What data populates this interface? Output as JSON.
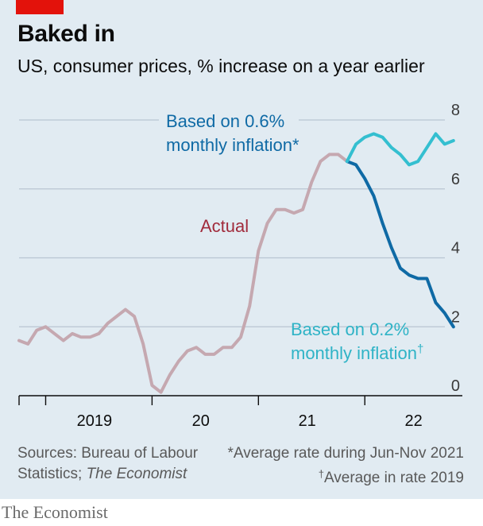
{
  "header": {
    "title": "Baked in",
    "subtitle": "US, consumer prices, % increase on a year earlier"
  },
  "colors": {
    "actual": "#c5a8b0",
    "projection_high": "#0f6aa5",
    "projection_low": "#34bfd0",
    "actual_label": "#a12b3c",
    "grid": "#b8c6d2",
    "panel": "#e1ebf2"
  },
  "chart_data": {
    "type": "line",
    "ylim": [
      0,
      8
    ],
    "yticks": [
      "8",
      "6",
      "4",
      "2",
      "0"
    ],
    "xticks": [
      "2019",
      "20",
      "21",
      "22"
    ],
    "x_range": [
      "2018-10",
      "2022-12"
    ],
    "series": [
      {
        "name": "Actual",
        "x": [
          "2018-10",
          "2018-11",
          "2018-12",
          "2019-01",
          "2019-02",
          "2019-03",
          "2019-04",
          "2019-05",
          "2019-06",
          "2019-07",
          "2019-08",
          "2019-09",
          "2019-10",
          "2019-11",
          "2019-12",
          "2020-01",
          "2020-02",
          "2020-03",
          "2020-04",
          "2020-05",
          "2020-06",
          "2020-07",
          "2020-08",
          "2020-09",
          "2020-10",
          "2020-11",
          "2020-12",
          "2021-01",
          "2021-02",
          "2021-03",
          "2021-04",
          "2021-05",
          "2021-06",
          "2021-07",
          "2021-08",
          "2021-09",
          "2021-10",
          "2021-11"
        ],
        "values": [
          1.6,
          1.5,
          1.9,
          2.0,
          1.8,
          1.6,
          1.8,
          1.7,
          1.7,
          1.8,
          2.1,
          2.3,
          2.5,
          2.3,
          1.5,
          0.3,
          0.1,
          0.6,
          1.0,
          1.3,
          1.4,
          1.2,
          1.2,
          1.4,
          1.4,
          1.7,
          2.6,
          4.2,
          5.0,
          5.4,
          5.4,
          5.3,
          5.4,
          6.2,
          6.8,
          7.0,
          7.0,
          6.8
        ]
      },
      {
        "name": "Based on 0.6% monthly inflation*",
        "x": [
          "2021-11",
          "2021-12",
          "2022-01",
          "2022-02",
          "2022-03",
          "2022-04",
          "2022-05",
          "2022-06",
          "2022-07",
          "2022-08",
          "2022-09",
          "2022-10",
          "2022-11"
        ],
        "values": [
          6.8,
          7.3,
          7.5,
          7.6,
          7.5,
          7.2,
          7.0,
          6.7,
          6.8,
          7.2,
          7.6,
          7.3,
          7.4
        ]
      },
      {
        "name": "Based on 0.2% monthly inflation†",
        "x": [
          "2021-11",
          "2021-12",
          "2022-01",
          "2022-02",
          "2022-03",
          "2022-04",
          "2022-05",
          "2022-06",
          "2022-07",
          "2022-08",
          "2022-09",
          "2022-10",
          "2022-11"
        ],
        "values": [
          6.8,
          6.7,
          6.3,
          5.8,
          5.0,
          4.3,
          3.7,
          3.5,
          3.4,
          3.4,
          2.7,
          2.4,
          2.0
        ]
      }
    ],
    "annotations": {
      "actual": "Actual",
      "high_line1": "Based on 0.6%",
      "high_line2": "monthly inflation*",
      "low_line1": "Based on 0.2%",
      "low_line2": "monthly inflation",
      "low_dagger": "†"
    }
  },
  "footer": {
    "sources_line1": "Sources: Bureau of Labour",
    "sources_line2_prefix": "Statistics; ",
    "sources_line2_italic": "The Economist",
    "note_line1": "*Average rate during Jun-Nov 2021",
    "note_dagger": "†",
    "note_line2": "Average in rate 2019"
  },
  "brand": "The Economist"
}
